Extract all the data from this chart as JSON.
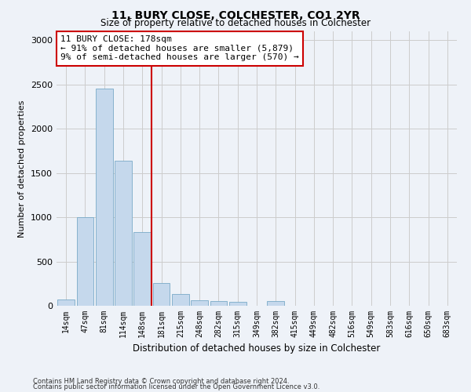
{
  "title1": "11, BURY CLOSE, COLCHESTER, CO1 2YR",
  "title2": "Size of property relative to detached houses in Colchester",
  "xlabel": "Distribution of detached houses by size in Colchester",
  "ylabel": "Number of detached properties",
  "footnote1": "Contains HM Land Registry data © Crown copyright and database right 2024.",
  "footnote2": "Contains public sector information licensed under the Open Government Licence v3.0.",
  "categories": [
    "14sqm",
    "47sqm",
    "81sqm",
    "114sqm",
    "148sqm",
    "181sqm",
    "215sqm",
    "248sqm",
    "282sqm",
    "315sqm",
    "349sqm",
    "382sqm",
    "415sqm",
    "449sqm",
    "482sqm",
    "516sqm",
    "549sqm",
    "583sqm",
    "616sqm",
    "650sqm",
    "683sqm"
  ],
  "values": [
    75,
    1000,
    2450,
    1640,
    830,
    260,
    130,
    60,
    50,
    40,
    0,
    55,
    0,
    0,
    0,
    0,
    0,
    0,
    0,
    0,
    0
  ],
  "bar_color": "#c5d8ec",
  "bar_edge_color": "#7aaac8",
  "vline_color": "#cc0000",
  "annotation_box_color": "#cc0000",
  "annotation_box_bg": "#ffffff",
  "annotation_box_text": "11 BURY CLOSE: 178sqm\n← 91% of detached houses are smaller (5,879)\n9% of semi-detached houses are larger (570) →",
  "ylim": [
    0,
    3100
  ],
  "yticks": [
    0,
    500,
    1000,
    1500,
    2000,
    2500,
    3000
  ],
  "grid_color": "#cccccc",
  "bg_color": "#eef2f8"
}
